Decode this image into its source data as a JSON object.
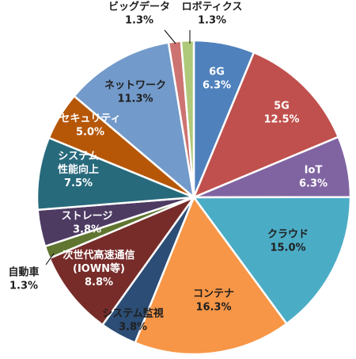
{
  "chart_data": {
    "type": "pie",
    "title": "",
    "start_angle_deg": 0,
    "direction": "clockwise",
    "legend": "none",
    "slices": [
      {
        "name": "6G",
        "value": 6.3,
        "color": "#4F81BD",
        "label_lines": [
          "6G",
          "6.3%"
        ],
        "label_color": "#ffffff"
      },
      {
        "name": "5G",
        "value": 12.5,
        "color": "#C0504D",
        "label_lines": [
          "5G",
          "12.5%"
        ],
        "label_color": "#ffffff"
      },
      {
        "name": "IoT",
        "value": 6.3,
        "color": "#8064A2",
        "label_lines": [
          "IoT",
          "6.3%"
        ],
        "label_color": "#ffffff"
      },
      {
        "name": "クラウド",
        "value": 15.0,
        "color": "#4BACC6",
        "label_lines": [
          "クラウド",
          "15.0%"
        ],
        "label_color": "#1f1f1f"
      },
      {
        "name": "コンテナ",
        "value": 16.3,
        "color": "#F79646",
        "label_lines": [
          "コンテナ",
          "16.3%"
        ],
        "label_color": "#1f1f1f"
      },
      {
        "name": "システム監視",
        "value": 3.8,
        "color": "#2C4D75",
        "label_lines": [
          "システム監視",
          "3.8%"
        ],
        "label_color": "#1f1f1f"
      },
      {
        "name": "次世代高速通信(IOWN等)",
        "value": 8.8,
        "color": "#772C2A",
        "label_lines": [
          "次世代高速通信",
          "(IOWN等)",
          "8.8%"
        ],
        "label_color": "#ffffff"
      },
      {
        "name": "自動車",
        "value": 1.3,
        "color": "#5F7530",
        "label_lines": [
          "自動車",
          "1.3%"
        ],
        "label_color": "#1f1f1f"
      },
      {
        "name": "ストレージ",
        "value": 3.8,
        "color": "#4D3B62",
        "label_lines": [
          "ストレージ",
          "3.8%"
        ],
        "label_color": "#ffffff"
      },
      {
        "name": "システム性能向上",
        "value": 7.5,
        "color": "#276A7C",
        "label_lines": [
          "システム",
          "性能向上",
          "7.5%"
        ],
        "label_color": "#ffffff"
      },
      {
        "name": "セキュリティ",
        "value": 5.0,
        "color": "#B65708",
        "label_lines": [
          "セキュリティ",
          "5.0%"
        ],
        "label_color": "#ffffff"
      },
      {
        "name": "ネットワーク",
        "value": 11.3,
        "color": "#729ACA",
        "label_lines": [
          "ネットワーク",
          "11.3%"
        ],
        "label_color": "#1f1f1f"
      },
      {
        "name": "ビッグデータ",
        "value": 1.3,
        "color": "#CD7371",
        "label_lines": [
          "ビッグデータ",
          "1.3%"
        ],
        "label_color": "#1f1f1f"
      },
      {
        "name": "ロボティクス",
        "value": 1.3,
        "color": "#AFC97A",
        "label_lines": [
          "ロボティクス",
          "1.3%"
        ],
        "label_color": "#1f1f1f"
      }
    ]
  }
}
